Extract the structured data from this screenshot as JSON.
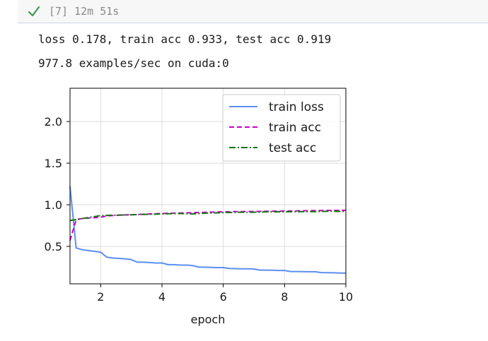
{
  "cell": {
    "status_icon": "check-icon",
    "status_color": "#3c9a4a",
    "execution_count": "[7]",
    "elapsed": "12m 51s"
  },
  "output": {
    "line1": "loss 0.178, train acc 0.933, test acc 0.919",
    "line2": "977.8 examples/sec on cuda:0"
  },
  "chart_data": {
    "type": "line",
    "title": "",
    "xlabel": "epoch",
    "ylabel": "",
    "xlim": [
      1,
      10
    ],
    "ylim": [
      0.05,
      2.4
    ],
    "xticks": [
      2,
      4,
      6,
      8,
      10
    ],
    "yticks": [
      0.5,
      1.0,
      1.5,
      2.0
    ],
    "xtick_labels": [
      "2",
      "4",
      "6",
      "8",
      "10"
    ],
    "ytick_labels": [
      "0.5",
      "1.0",
      "1.5",
      "2.0"
    ],
    "grid": true,
    "legend_position": "top-right",
    "series": [
      {
        "name": "train loss",
        "color": "#5b8ff0",
        "dash": "solid",
        "x": [
          1.0,
          1.2,
          1.4,
          1.6,
          1.8,
          2.0,
          2.2,
          2.4,
          2.6,
          2.8,
          3.0,
          3.2,
          3.4,
          3.6,
          3.8,
          4.0,
          4.2,
          4.4,
          4.6,
          4.8,
          5.0,
          5.2,
          5.4,
          5.6,
          5.8,
          6.0,
          6.2,
          6.4,
          6.6,
          6.8,
          7.0,
          7.2,
          7.4,
          7.6,
          7.8,
          8.0,
          8.2,
          8.4,
          8.6,
          8.8,
          9.0,
          9.2,
          9.4,
          9.6,
          9.8,
          10.0
        ],
        "y": [
          1.22,
          0.48,
          0.46,
          0.45,
          0.44,
          0.43,
          0.37,
          0.36,
          0.355,
          0.35,
          0.34,
          0.31,
          0.31,
          0.305,
          0.3,
          0.3,
          0.28,
          0.28,
          0.275,
          0.275,
          0.27,
          0.25,
          0.25,
          0.248,
          0.245,
          0.245,
          0.235,
          0.232,
          0.23,
          0.23,
          0.228,
          0.215,
          0.215,
          0.213,
          0.21,
          0.21,
          0.198,
          0.198,
          0.196,
          0.195,
          0.195,
          0.185,
          0.183,
          0.182,
          0.18,
          0.178
        ]
      },
      {
        "name": "train acc",
        "color": "#cc00cc",
        "dash": "dashed",
        "x": [
          1.0,
          1.2,
          1.4,
          1.6,
          1.8,
          2.0,
          2.2,
          2.4,
          2.6,
          2.8,
          3.0,
          3.5,
          4.0,
          4.5,
          5.0,
          5.5,
          6.0,
          6.5,
          7.0,
          7.5,
          8.0,
          8.5,
          9.0,
          9.5,
          10.0
        ],
        "y": [
          0.57,
          0.82,
          0.835,
          0.84,
          0.845,
          0.85,
          0.865,
          0.87,
          0.875,
          0.878,
          0.88,
          0.888,
          0.895,
          0.9,
          0.905,
          0.91,
          0.915,
          0.918,
          0.92,
          0.922,
          0.925,
          0.927,
          0.93,
          0.932,
          0.933
        ]
      },
      {
        "name": "test acc",
        "color": "#117711",
        "dash": "dashdot",
        "x": [
          1.0,
          1.5,
          2.0,
          2.5,
          3.0,
          3.5,
          4.0,
          4.5,
          5.0,
          5.5,
          6.0,
          6.5,
          7.0,
          7.5,
          8.0,
          8.5,
          9.0,
          9.5,
          10.0
        ],
        "y": [
          0.81,
          0.84,
          0.87,
          0.875,
          0.88,
          0.885,
          0.89,
          0.895,
          0.89,
          0.9,
          0.905,
          0.91,
          0.91,
          0.915,
          0.915,
          0.917,
          0.918,
          0.922,
          0.919
        ]
      }
    ]
  }
}
